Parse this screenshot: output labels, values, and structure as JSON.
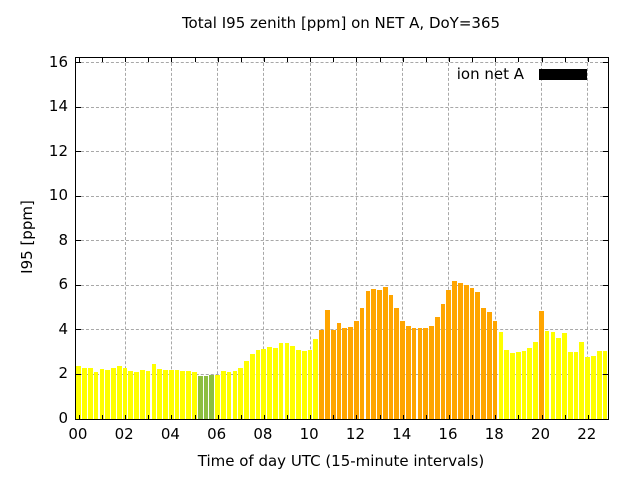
{
  "title": "Total I95 zenith [ppm] on NET A, DoY=365",
  "legend": {
    "label": "ion net A",
    "swatch_color": "#000000"
  },
  "axes": {
    "x_label": "Time of day UTC (15-minute intervals)",
    "y_label": "I95 [ppm]",
    "x_tick_labels": [
      "00",
      "02",
      "04",
      "06",
      "08",
      "10",
      "12",
      "14",
      "16",
      "18",
      "20",
      "22"
    ],
    "y_tick_values": [
      0,
      2,
      4,
      6,
      8,
      10,
      12,
      14,
      16
    ]
  },
  "chart_data": {
    "type": "bar",
    "title": "Total I95 zenith [ppm] on NET A, DoY=365",
    "xlabel": "Time of day UTC (15-minute intervals)",
    "ylabel": "I95 [ppm]",
    "ylim": [
      0,
      16.22
    ],
    "x_hours_range": [
      0,
      23
    ],
    "interval_minutes": 15,
    "grid": true,
    "legend_position": "top-right-inside",
    "series_name": "ion net A",
    "color_map": {
      "yellow": "#ffff00",
      "green": "#8cbe41",
      "orange": "#ffa500"
    },
    "times": [
      "00:00",
      "00:15",
      "00:30",
      "00:45",
      "01:00",
      "01:15",
      "01:30",
      "01:45",
      "02:00",
      "02:15",
      "02:30",
      "02:45",
      "03:00",
      "03:15",
      "03:30",
      "03:45",
      "04:00",
      "04:15",
      "04:30",
      "04:45",
      "05:00",
      "05:15",
      "05:30",
      "05:45",
      "06:00",
      "06:15",
      "06:30",
      "06:45",
      "07:00",
      "07:15",
      "07:30",
      "07:45",
      "08:00",
      "08:15",
      "08:30",
      "08:45",
      "09:00",
      "09:15",
      "09:30",
      "09:45",
      "10:00",
      "10:15",
      "10:30",
      "10:45",
      "11:00",
      "11:15",
      "11:30",
      "11:45",
      "12:00",
      "12:15",
      "12:30",
      "12:45",
      "13:00",
      "13:15",
      "13:30",
      "13:45",
      "14:00",
      "14:15",
      "14:30",
      "14:45",
      "15:00",
      "15:15",
      "15:30",
      "15:45",
      "16:00",
      "16:15",
      "16:30",
      "16:45",
      "17:00",
      "17:15",
      "17:30",
      "17:45",
      "18:00",
      "18:15",
      "18:30",
      "18:45",
      "19:00",
      "19:15",
      "19:30",
      "19:45",
      "20:00",
      "20:15",
      "20:30",
      "20:45",
      "21:00",
      "21:15",
      "21:30",
      "21:45",
      "22:00",
      "22:15",
      "22:30",
      "22:45"
    ],
    "values": [
      2.4,
      2.3,
      2.3,
      2.1,
      2.25,
      2.2,
      2.3,
      2.4,
      2.3,
      2.15,
      2.1,
      2.2,
      2.15,
      2.45,
      2.25,
      2.2,
      2.2,
      2.2,
      2.15,
      2.15,
      2.1,
      1.95,
      1.95,
      2.0,
      2.0,
      2.15,
      2.1,
      2.15,
      2.3,
      2.6,
      2.9,
      3.1,
      3.15,
      3.25,
      3.2,
      3.4,
      3.4,
      3.3,
      3.1,
      3.05,
      3.1,
      3.6,
      4.0,
      4.9,
      4.0,
      4.3,
      4.1,
      4.15,
      4.4,
      5.0,
      5.75,
      5.85,
      5.8,
      5.95,
      5.55,
      5.0,
      4.4,
      4.2,
      4.1,
      4.1,
      4.1,
      4.2,
      4.6,
      5.15,
      5.8,
      6.2,
      6.1,
      6.0,
      5.9,
      5.7,
      5.0,
      4.8,
      4.4,
      3.9,
      3.1,
      2.95,
      3.0,
      3.05,
      3.2,
      3.45,
      4.85,
      3.95,
      3.9,
      3.65,
      3.85,
      3.0,
      3.0,
      3.45,
      2.8,
      2.85,
      3.05,
      3.05
    ],
    "colors": [
      "yellow",
      "yellow",
      "yellow",
      "yellow",
      "yellow",
      "yellow",
      "yellow",
      "yellow",
      "yellow",
      "yellow",
      "yellow",
      "yellow",
      "yellow",
      "yellow",
      "yellow",
      "yellow",
      "yellow",
      "yellow",
      "yellow",
      "yellow",
      "yellow",
      "green",
      "green",
      "green",
      "yellow",
      "yellow",
      "yellow",
      "yellow",
      "yellow",
      "yellow",
      "yellow",
      "yellow",
      "yellow",
      "yellow",
      "yellow",
      "yellow",
      "yellow",
      "yellow",
      "yellow",
      "yellow",
      "yellow",
      "yellow",
      "orange",
      "orange",
      "orange",
      "orange",
      "orange",
      "orange",
      "orange",
      "orange",
      "orange",
      "orange",
      "orange",
      "orange",
      "orange",
      "orange",
      "orange",
      "orange",
      "orange",
      "orange",
      "orange",
      "orange",
      "orange",
      "orange",
      "orange",
      "orange",
      "orange",
      "orange",
      "orange",
      "orange",
      "orange",
      "orange",
      "orange",
      "yellow",
      "yellow",
      "yellow",
      "yellow",
      "yellow",
      "yellow",
      "yellow",
      "orange",
      "yellow",
      "yellow",
      "yellow",
      "yellow",
      "yellow",
      "yellow",
      "yellow",
      "yellow",
      "yellow",
      "yellow",
      "yellow"
    ]
  }
}
